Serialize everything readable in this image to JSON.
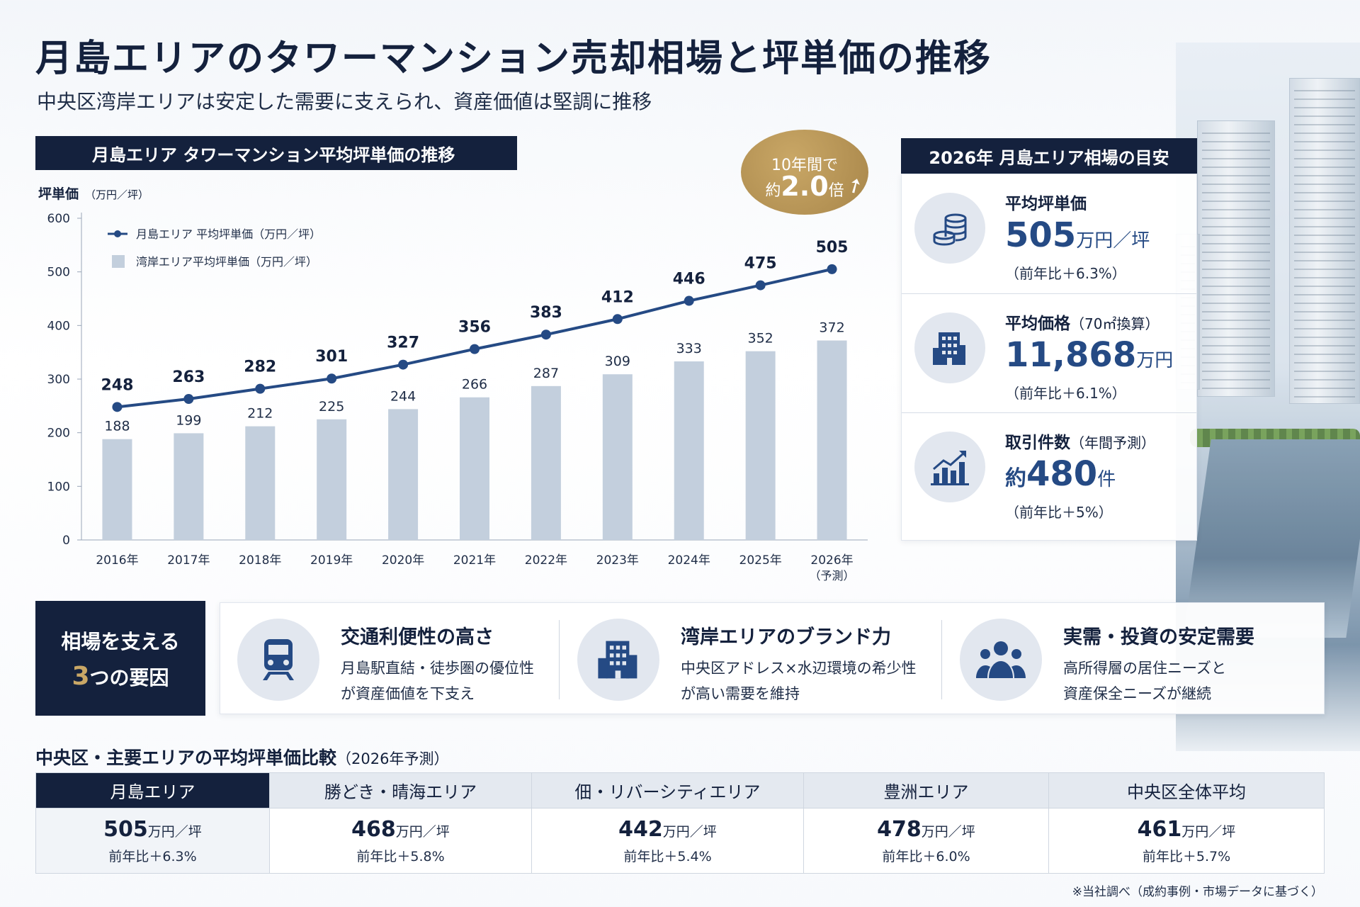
{
  "title": "月島エリアのタワーマンション売却相場と坪単価の推移",
  "subtitle": "中央区湾岸エリアは安定した需要に支えられ、資産価値は堅調に推移",
  "chart_header": "月島エリア タワーマンション平均坪単価の推移",
  "badge": {
    "line1": "10年間で",
    "pre": "約",
    "big": "2.0",
    "post": "倍"
  },
  "chart_data": {
    "type": "bar+line",
    "ylabel": "坪単価",
    "ylabel_unit": "（万円／坪）",
    "ylim": [
      0,
      600
    ],
    "yticks": [
      0,
      100,
      200,
      300,
      400,
      500,
      600
    ],
    "categories": [
      "2016年",
      "2017年",
      "2018年",
      "2019年",
      "2020年",
      "2021年",
      "2022年",
      "2023年",
      "2024年",
      "2025年",
      "2026年"
    ],
    "category_note": {
      "index": 10,
      "text": "（予測）"
    },
    "series": [
      {
        "name": "月島エリア 平均坪単価（万円／坪）",
        "type": "line",
        "color": "#254a84",
        "values": [
          248,
          263,
          282,
          301,
          327,
          356,
          383,
          412,
          446,
          475,
          505
        ]
      },
      {
        "name": "湾岸エリア平均坪単価（万円／坪）",
        "type": "bar",
        "color": "#c3cfdd",
        "values": [
          188,
          199,
          212,
          225,
          244,
          266,
          287,
          309,
          333,
          352,
          372
        ]
      }
    ],
    "grid": false,
    "legend": "top-left"
  },
  "panel": {
    "header": "2026年 月島エリア相場の目安",
    "stats": [
      {
        "icon": "coins-icon",
        "label": "平均坪単価",
        "label_note": "",
        "pre": "",
        "value": "505",
        "unit": "万円／坪",
        "yoy": "（前年比＋6.3%）"
      },
      {
        "icon": "building-icon",
        "label": "平均価格",
        "label_note": "（70㎡換算）",
        "pre": "",
        "value": "11,868",
        "unit": "万円",
        "yoy": "（前年比＋6.1%）"
      },
      {
        "icon": "bar-chart-icon",
        "label": "取引件数",
        "label_note": "（年間予測）",
        "pre": "約",
        "value": "480",
        "unit": "件",
        "yoy": "（前年比＋5%）"
      }
    ]
  },
  "factors": {
    "title_line1": "相場を支える",
    "title_num": "3",
    "title_line2": "つの要因",
    "items": [
      {
        "icon": "train-icon",
        "title": "交通利便性の高さ",
        "desc1": "月島駅直結・徒歩圏の優位性",
        "desc2": "が資産価値を下支え"
      },
      {
        "icon": "building-icon",
        "title": "湾岸エリアのブランド力",
        "desc1": "中央区アドレス×水辺環境の希少性",
        "desc2": "が高い需要を維持"
      },
      {
        "icon": "people-icon",
        "title": "実需・投資の安定需要",
        "desc1": "高所得層の居住ニーズと",
        "desc2": "資産保全ニーズが継続"
      }
    ]
  },
  "table": {
    "title": "中央区・主要エリアの平均坪単価比較",
    "title_note": "（2026年予測）",
    "columns": [
      {
        "area": "月島エリア",
        "value": "505",
        "unit": "万円／坪",
        "yoy": "前年比＋6.3%"
      },
      {
        "area": "勝どき・晴海エリア",
        "value": "468",
        "unit": "万円／坪",
        "yoy": "前年比＋5.8%"
      },
      {
        "area": "佃・リバーシティエリア",
        "value": "442",
        "unit": "万円／坪",
        "yoy": "前年比＋5.4%"
      },
      {
        "area": "豊洲エリア",
        "value": "478",
        "unit": "万円／坪",
        "yoy": "前年比＋6.0%"
      },
      {
        "area": "中央区全体平均",
        "value": "461",
        "unit": "万円／坪",
        "yoy": "前年比＋5.7%"
      }
    ]
  },
  "footnote": "※当社調べ（成約事例・市場データに基づく）",
  "colors": {
    "navy": "#14213d",
    "line": "#254a84",
    "bar": "#c3cfdd",
    "gold": "#c9a766"
  }
}
